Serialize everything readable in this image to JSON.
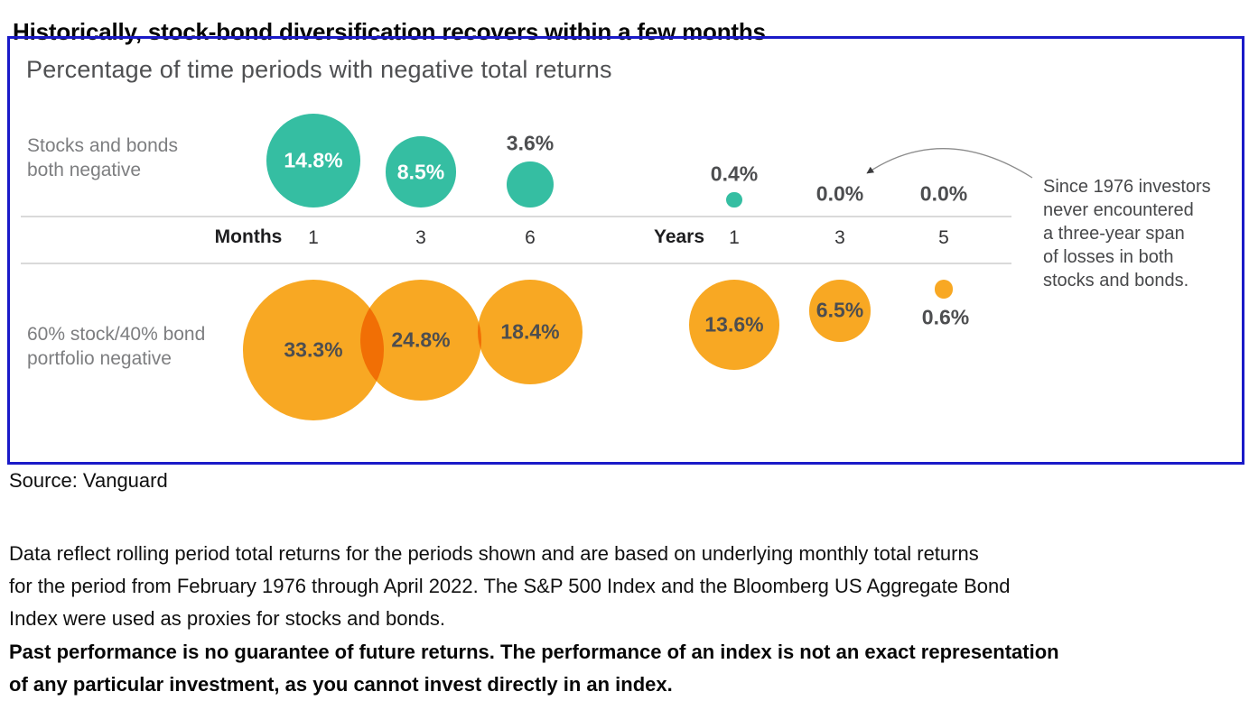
{
  "page": {
    "title": "Historically, stock-bond diversification recovers within a few months",
    "source": "Source: Vanguard",
    "note": "Data reflect rolling period total returns for the periods shown and are based on underlying monthly total returns\nfor the period from February 1976 through April 2022. The S&P 500 Index and the Bloomberg US Aggregate Bond\nIndex were used as proxies for stocks and bonds.",
    "disclaimer": "Past performance is no guarantee of future returns. The performance of an index is not an exact representation\nof any particular investment, as you cannot invest directly in an index."
  },
  "chart": {
    "subtitle": "Percentage of time periods with negative total returns",
    "row_labels": [
      "Stocks and bonds\nboth negative",
      "60% stock/40% bond\nportfolio negative"
    ],
    "axis": {
      "months_label": "Months",
      "years_label": "Years",
      "month_ticks": [
        "1",
        "3",
        "6"
      ],
      "year_ticks": [
        "1",
        "3",
        "5"
      ]
    },
    "annotation": "Since 1976 investors\nnever encountered\na three-year span\nof losses in both\nstocks and bonds.",
    "colors": {
      "teal": "#35BEA2",
      "orange": "#F8A823",
      "frame_border": "#1A1AC8",
      "axis_line": "#DADADA",
      "label_dark": "#4D4E50"
    }
  },
  "chart_data": {
    "type": "bubble",
    "title": "Percentage of time periods with negative total returns",
    "categories": [
      "1 month",
      "3 months",
      "6 months",
      "1 year",
      "3 years",
      "5 years"
    ],
    "axis_groups": [
      {
        "label": "Months",
        "ticks": [
          "1",
          "3",
          "6"
        ]
      },
      {
        "label": "Years",
        "ticks": [
          "1",
          "3",
          "5"
        ]
      }
    ],
    "series": [
      {
        "name": "Stocks and bonds both negative",
        "color": "#35BEA2",
        "values": [
          14.8,
          8.5,
          3.6,
          0.4,
          0.0,
          0.0
        ]
      },
      {
        "name": "60% stock/40% bond portfolio negative",
        "color": "#F8A823",
        "values": [
          33.3,
          24.8,
          18.4,
          13.6,
          6.5,
          0.6
        ]
      }
    ],
    "value_suffix": "%",
    "sizing": "bubble area proportional to value",
    "annotation": "Since 1976 investors never encountered a three-year span of losses in both stocks and bonds.",
    "legend_position": "left row labels"
  }
}
